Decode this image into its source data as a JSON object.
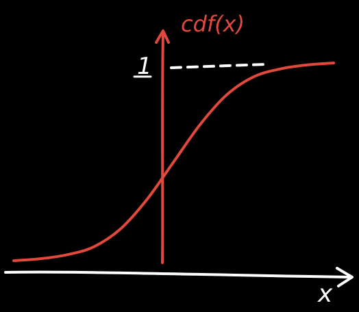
{
  "colors": {
    "background": "#000000",
    "curve": "#e0493c",
    "axis": "#ffffff",
    "label_red": "#e0493c",
    "label_white": "#ffffff"
  },
  "labels": {
    "y_axis": "cdf(x)",
    "x_axis": "x",
    "asymptote": "1"
  },
  "chart_data": {
    "type": "line",
    "title": "",
    "xlabel": "x",
    "ylabel": "cdf(x)",
    "series": [
      {
        "x": [
          -3,
          -2.5,
          -2,
          -1.5,
          -1,
          -0.5,
          0,
          0.5,
          1,
          1.5,
          2,
          2.5,
          3
        ],
        "values": [
          0.0,
          0.01,
          0.03,
          0.07,
          0.16,
          0.31,
          0.5,
          0.69,
          0.84,
          0.93,
          0.97,
          0.99,
          1.0
        ]
      }
    ],
    "yticks": [
      "1"
    ],
    "asymptote_y": 1,
    "asymptote_style": "dashed",
    "grid": false
  }
}
